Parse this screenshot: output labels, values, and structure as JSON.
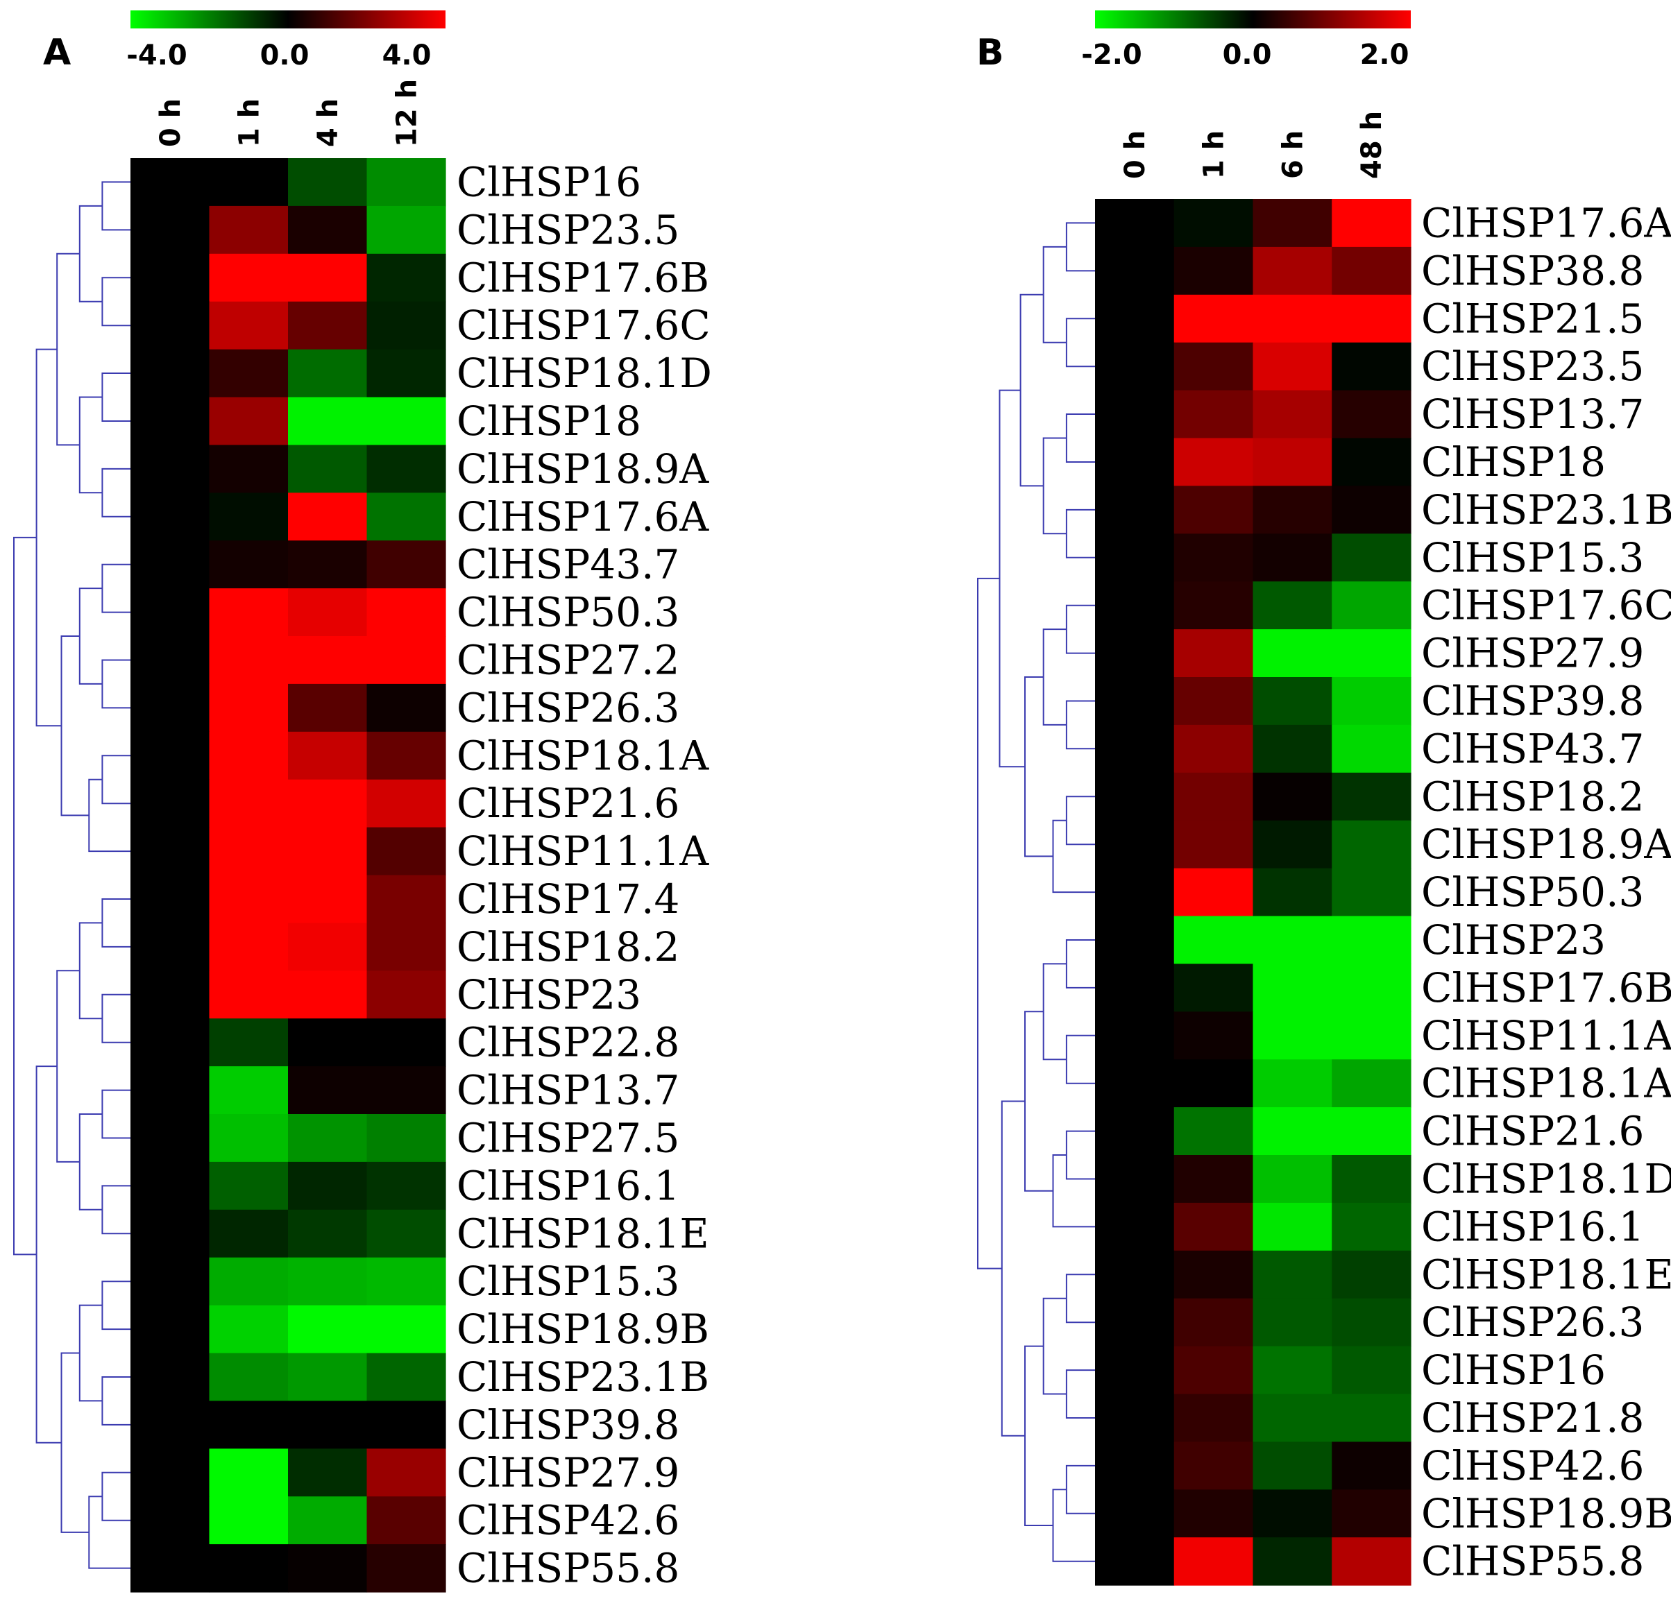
{
  "chart_data": [
    {
      "type": "heatmap",
      "panel_label": "A",
      "color_scale": {
        "ticks": [
          "-4.0",
          "0.0",
          "4.0"
        ],
        "min": -4.0,
        "max": 4.0,
        "colors": {
          "low": "#00ff00",
          "mid": "#000000",
          "high": "#ff0000"
        }
      },
      "columns": [
        "0 h",
        "1 h",
        "4 h",
        "12 h"
      ],
      "rows": [
        {
          "gene": "ClHSP16",
          "values": [
            0,
            0,
            -1.2,
            -2.2
          ]
        },
        {
          "gene": "ClHSP23.5",
          "values": [
            0,
            2.2,
            0.4,
            -2.6
          ]
        },
        {
          "gene": "ClHSP17.6B",
          "values": [
            0,
            4.0,
            4.0,
            -0.6
          ]
        },
        {
          "gene": "ClHSP17.6C",
          "values": [
            0,
            3.0,
            1.6,
            -0.5
          ]
        },
        {
          "gene": "ClHSP18.1D",
          "values": [
            0,
            0.8,
            -1.7,
            -0.6
          ]
        },
        {
          "gene": "ClHSP18",
          "values": [
            0,
            2.4,
            -3.8,
            -3.8
          ]
        },
        {
          "gene": "ClHSP18.9A",
          "values": [
            0,
            0.3,
            -1.4,
            -0.7
          ]
        },
        {
          "gene": "ClHSP17.6A",
          "values": [
            0,
            -0.2,
            4.0,
            -1.8
          ]
        },
        {
          "gene": "ClHSP43.7",
          "values": [
            0,
            0.3,
            0.4,
            1.0
          ]
        },
        {
          "gene": "ClHSP50.3",
          "values": [
            0,
            4.0,
            3.6,
            4.0
          ]
        },
        {
          "gene": "ClHSP27.2",
          "values": [
            0,
            4.0,
            4.0,
            4.0
          ]
        },
        {
          "gene": "ClHSP26.3",
          "values": [
            0,
            4.0,
            1.4,
            0.2
          ]
        },
        {
          "gene": "ClHSP18.1A",
          "values": [
            0,
            4.0,
            3.1,
            1.6
          ]
        },
        {
          "gene": "ClHSP21.6",
          "values": [
            0,
            4.0,
            4.0,
            3.3
          ]
        },
        {
          "gene": "ClHSP11.1A",
          "values": [
            0,
            4.0,
            4.0,
            1.3
          ]
        },
        {
          "gene": "ClHSP17.4",
          "values": [
            0,
            4.0,
            4.0,
            1.9
          ]
        },
        {
          "gene": "ClHSP18.2",
          "values": [
            0,
            4.0,
            3.8,
            1.9
          ]
        },
        {
          "gene": "ClHSP23",
          "values": [
            0,
            4.0,
            4.0,
            2.2
          ]
        },
        {
          "gene": "ClHSP22.8",
          "values": [
            0,
            -1.0,
            0.0,
            0.0
          ]
        },
        {
          "gene": "ClHSP13.7",
          "values": [
            0,
            -3.2,
            0.2,
            0.2
          ]
        },
        {
          "gene": "ClHSP27.5",
          "values": [
            0,
            -3.0,
            -2.3,
            -2.0
          ]
        },
        {
          "gene": "ClHSP16.1",
          "values": [
            0,
            -1.5,
            -0.6,
            -0.8
          ]
        },
        {
          "gene": "ClHSP18.1E",
          "values": [
            0,
            -0.6,
            -0.9,
            -1.2
          ]
        },
        {
          "gene": "ClHSP15.3",
          "values": [
            0,
            -2.7,
            -2.8,
            -2.9
          ]
        },
        {
          "gene": "ClHSP18.9B",
          "values": [
            0,
            -3.3,
            -3.9,
            -3.9
          ]
        },
        {
          "gene": "ClHSP23.1B",
          "values": [
            0,
            -2.2,
            -2.4,
            -1.6
          ]
        },
        {
          "gene": "ClHSP39.8",
          "values": [
            0,
            0.0,
            0.0,
            0.0
          ]
        },
        {
          "gene": "ClHSP27.9",
          "values": [
            0,
            -3.9,
            -0.7,
            2.4
          ]
        },
        {
          "gene": "ClHSP42.6",
          "values": [
            0,
            -3.9,
            -2.7,
            1.4
          ]
        },
        {
          "gene": "ClHSP55.8",
          "values": [
            0,
            0.0,
            0.1,
            0.6
          ]
        }
      ],
      "dendrogram": {
        "side": "left",
        "color": "#3b3bb0"
      }
    },
    {
      "type": "heatmap",
      "panel_label": "B",
      "color_scale": {
        "ticks": [
          "-2.0",
          "0.0",
          "2.0"
        ],
        "min": -2.0,
        "max": 2.0,
        "colors": {
          "low": "#00ff00",
          "mid": "#000000",
          "high": "#ff0000"
        }
      },
      "columns": [
        "0 h",
        "1 h",
        "6 h",
        "48 h"
      ],
      "rows": [
        {
          "gene": "ClHSP17.6A",
          "values": [
            0,
            -0.1,
            0.5,
            2.0
          ]
        },
        {
          "gene": "ClHSP38.8",
          "values": [
            0,
            0.2,
            1.3,
            0.9
          ]
        },
        {
          "gene": "ClHSP21.5",
          "values": [
            0,
            2.0,
            2.0,
            2.0
          ]
        },
        {
          "gene": "ClHSP23.5",
          "values": [
            0,
            0.6,
            1.7,
            -0.05
          ]
        },
        {
          "gene": "ClHSP13.7",
          "values": [
            0,
            0.9,
            1.3,
            0.3
          ]
        },
        {
          "gene": "ClHSP18",
          "values": [
            0,
            1.6,
            1.5,
            -0.05
          ]
        },
        {
          "gene": "ClHSP23.1B",
          "values": [
            0,
            0.6,
            0.3,
            0.1
          ]
        },
        {
          "gene": "ClHSP15.3",
          "values": [
            0,
            0.25,
            0.15,
            -0.6
          ]
        },
        {
          "gene": "ClHSP17.6C",
          "values": [
            0,
            0.3,
            -0.7,
            -1.3
          ]
        },
        {
          "gene": "ClHSP27.9",
          "values": [
            0,
            1.3,
            -1.9,
            -1.9
          ]
        },
        {
          "gene": "ClHSP39.8",
          "values": [
            0,
            0.8,
            -0.6,
            -1.6
          ]
        },
        {
          "gene": "ClHSP43.7",
          "values": [
            0,
            1.1,
            -0.4,
            -1.7
          ]
        },
        {
          "gene": "ClHSP18.2",
          "values": [
            0,
            0.9,
            0.05,
            -0.4
          ]
        },
        {
          "gene": "ClHSP18.9A",
          "values": [
            0,
            0.9,
            -0.2,
            -0.8
          ]
        },
        {
          "gene": "ClHSP50.3",
          "values": [
            0,
            2.0,
            -0.4,
            -0.8
          ]
        },
        {
          "gene": "ClHSP23",
          "values": [
            0,
            -1.9,
            -1.9,
            -1.9
          ]
        },
        {
          "gene": "ClHSP17.6B",
          "values": [
            0,
            -0.2,
            -1.9,
            -1.9
          ]
        },
        {
          "gene": "ClHSP11.1A",
          "values": [
            0,
            0.1,
            -1.9,
            -1.9
          ]
        },
        {
          "gene": "ClHSP18.1A",
          "values": [
            0,
            0.0,
            -1.6,
            -1.3
          ]
        },
        {
          "gene": "ClHSP21.6",
          "values": [
            0,
            -0.9,
            -1.9,
            -1.9
          ]
        },
        {
          "gene": "ClHSP18.1D",
          "values": [
            0,
            0.25,
            -1.5,
            -0.7
          ]
        },
        {
          "gene": "ClHSP16.1",
          "values": [
            0,
            0.7,
            -1.8,
            -0.8
          ]
        },
        {
          "gene": "ClHSP18.1E",
          "values": [
            0,
            0.2,
            -0.7,
            -0.5
          ]
        },
        {
          "gene": "ClHSP26.3",
          "values": [
            0,
            0.5,
            -0.7,
            -0.6
          ]
        },
        {
          "gene": "ClHSP16",
          "values": [
            0,
            0.6,
            -0.9,
            -0.7
          ]
        },
        {
          "gene": "ClHSP21.8",
          "values": [
            0,
            0.4,
            -0.8,
            -0.8
          ]
        },
        {
          "gene": "ClHSP42.6",
          "values": [
            0,
            0.5,
            -0.6,
            0.1
          ]
        },
        {
          "gene": "ClHSP18.9B",
          "values": [
            0,
            0.25,
            -0.1,
            0.25
          ]
        },
        {
          "gene": "ClHSP55.8",
          "values": [
            0,
            1.9,
            -0.3,
            1.4
          ]
        }
      ],
      "dendrogram": {
        "side": "left",
        "color": "#3b3bb0"
      }
    }
  ]
}
